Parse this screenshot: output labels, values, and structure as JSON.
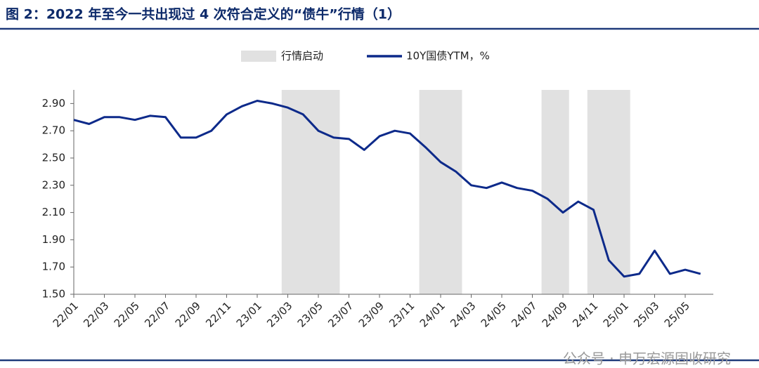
{
  "chart_data": {
    "type": "line",
    "title": "图 2：2022 年至今一共出现过 4 次符合定义的“债牛”行情（1）",
    "x": [
      "22/01",
      "22/02",
      "22/03",
      "22/04",
      "22/05",
      "22/06",
      "22/07",
      "22/08",
      "22/09",
      "22/10",
      "22/11",
      "22/12",
      "23/01",
      "23/02",
      "23/03",
      "23/04",
      "23/05",
      "23/06",
      "23/07",
      "23/08",
      "23/09",
      "23/10",
      "23/11",
      "23/12",
      "24/01",
      "24/02",
      "24/03",
      "24/04",
      "24/05",
      "24/06",
      "24/07",
      "24/08",
      "24/09",
      "24/10",
      "24/11",
      "24/12",
      "25/01",
      "25/02",
      "25/03",
      "25/04",
      "25/05",
      "25/06"
    ],
    "series": [
      {
        "name": "10Y国债YTM，%",
        "color": "#0d2a8a",
        "values": [
          2.78,
          2.75,
          2.8,
          2.8,
          2.78,
          2.81,
          2.8,
          2.65,
          2.65,
          2.7,
          2.82,
          2.88,
          2.92,
          2.9,
          2.87,
          2.82,
          2.7,
          2.65,
          2.64,
          2.56,
          2.66,
          2.7,
          2.68,
          2.58,
          2.47,
          2.4,
          2.3,
          2.28,
          2.32,
          2.28,
          2.26,
          2.2,
          2.1,
          2.18,
          2.12,
          1.75,
          1.63,
          1.65,
          1.82,
          1.65,
          1.68,
          1.65
        ]
      }
    ],
    "bands": {
      "name": "行情启动",
      "color": "#e1e1e1",
      "ranges": [
        [
          "23/03",
          "23/06"
        ],
        [
          "23/12",
          "24/02"
        ],
        [
          "24/08",
          "24/09"
        ],
        [
          "24/11",
          "25/01"
        ]
      ]
    },
    "xticks": [
      "22/01",
      "22/03",
      "22/05",
      "22/07",
      "22/09",
      "22/11",
      "23/01",
      "23/03",
      "23/05",
      "23/07",
      "23/09",
      "23/11",
      "24/01",
      "24/03",
      "24/05",
      "24/07",
      "24/09",
      "24/11",
      "25/01",
      "25/03",
      "25/05"
    ],
    "ylim": [
      1.5,
      3.0
    ],
    "yticks": [
      {
        "value": 1.5,
        "label": "1.50"
      },
      {
        "value": 1.7,
        "label": "1.70"
      },
      {
        "value": 1.9,
        "label": "1.90"
      },
      {
        "value": 2.1,
        "label": "2.10"
      },
      {
        "value": 2.3,
        "label": "2.30"
      },
      {
        "value": 2.5,
        "label": "2.50"
      },
      {
        "value": 2.7,
        "label": "2.70"
      },
      {
        "value": 2.9,
        "label": "2.90"
      }
    ],
    "watermark": "公众号 · 申万宏源固收研究"
  }
}
